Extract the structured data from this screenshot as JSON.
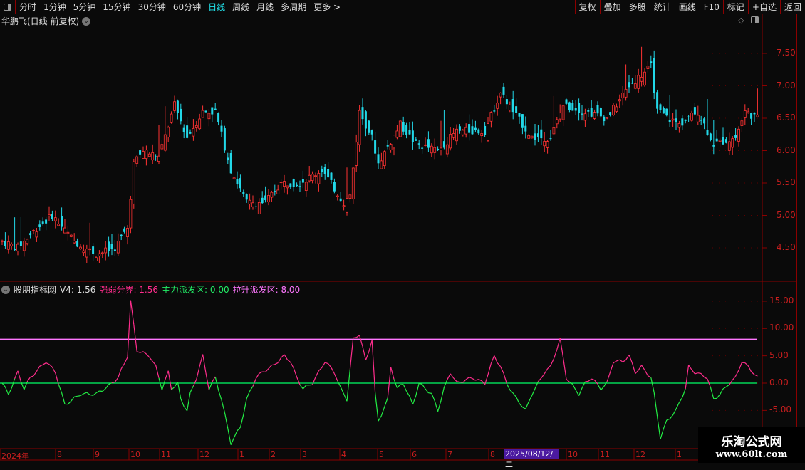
{
  "toolbar": {
    "periods": [
      "分时",
      "1分钟",
      "5分钟",
      "15分钟",
      "30分钟",
      "60分钟",
      "日线",
      "周线",
      "月线",
      "多周期",
      "更多 >"
    ],
    "active": "日线",
    "right_buttons": [
      "复权",
      "叠加",
      "多股",
      "统计",
      "画线",
      "F10",
      "标记",
      "+自选",
      "返回"
    ]
  },
  "main": {
    "title": "华鹏飞(日线 前复权)",
    "price_ticks": [
      "7.50",
      "7.00",
      "6.50",
      "6.00",
      "5.50",
      "5.00",
      "4.50"
    ],
    "price_path": [
      [
        0,
        4.6
      ],
      [
        5,
        4.5
      ],
      [
        11,
        4.8
      ],
      [
        16,
        5.0
      ],
      [
        23,
        4.6
      ],
      [
        30,
        4.4
      ],
      [
        36,
        4.5
      ],
      [
        40,
        4.8
      ],
      [
        42,
        5.8
      ],
      [
        45,
        6.0
      ],
      [
        50,
        5.9
      ],
      [
        55,
        6.7
      ],
      [
        59,
        6.2
      ],
      [
        64,
        6.6
      ],
      [
        68,
        6.6
      ],
      [
        73,
        5.7
      ],
      [
        78,
        5.2
      ],
      [
        84,
        5.2
      ],
      [
        89,
        5.5
      ],
      [
        95,
        5.5
      ],
      [
        102,
        5.7
      ],
      [
        109,
        5.2
      ],
      [
        111,
        5.3
      ],
      [
        114,
        6.6
      ],
      [
        118,
        6.2
      ],
      [
        120,
        5.8
      ],
      [
        127,
        6.4
      ],
      [
        132,
        6.1
      ],
      [
        139,
        6.0
      ],
      [
        145,
        6.3
      ],
      [
        154,
        6.3
      ],
      [
        159,
        6.9
      ],
      [
        163,
        6.6
      ],
      [
        169,
        6.2
      ],
      [
        175,
        6.2
      ],
      [
        179,
        6.7
      ],
      [
        186,
        6.6
      ],
      [
        193,
        6.5
      ],
      [
        200,
        7.0
      ],
      [
        207,
        7.3
      ],
      [
        209,
        6.6
      ],
      [
        216,
        6.4
      ],
      [
        222,
        6.6
      ],
      [
        227,
        6.1
      ],
      [
        234,
        6.2
      ],
      [
        237,
        6.6
      ],
      [
        241,
        6.5
      ]
    ],
    "up_color": "#ff3232",
    "down_color": "#22d8e8"
  },
  "indicator": {
    "name": "股朋指标网",
    "v4_label": "V4: 1.56",
    "strong_weak_label": "强弱分界: 1.56",
    "main_dist_label": "主力派发区: 0.00",
    "pull_dist_label": "拉升派发区: 8.00",
    "strong_weak": 1.56,
    "main_dist": 0.0,
    "pull_dist": 8.0,
    "ticks": [
      "15.00",
      "10.00",
      "5.00",
      "0.00",
      "-5.00"
    ],
    "v4_path": [
      [
        0,
        0
      ],
      [
        2,
        -2
      ],
      [
        5,
        2
      ],
      [
        7,
        -1
      ],
      [
        9,
        1
      ],
      [
        14,
        4
      ],
      [
        17,
        2
      ],
      [
        20,
        -4
      ],
      [
        25,
        -2
      ],
      [
        30,
        -2
      ],
      [
        34,
        -0.5
      ],
      [
        37,
        1
      ],
      [
        40,
        5
      ],
      [
        41,
        15
      ],
      [
        43,
        6
      ],
      [
        47,
        5
      ],
      [
        49,
        3
      ],
      [
        51,
        -1
      ],
      [
        53,
        2
      ],
      [
        54,
        -1
      ],
      [
        56,
        0
      ],
      [
        57,
        -3
      ],
      [
        59,
        -5
      ],
      [
        60,
        -2
      ],
      [
        62,
        1
      ],
      [
        64,
        5
      ],
      [
        66,
        -1
      ],
      [
        68,
        1
      ],
      [
        70,
        -3
      ],
      [
        73,
        -11
      ],
      [
        76,
        -8
      ],
      [
        78,
        -3
      ],
      [
        81,
        1
      ],
      [
        83,
        2
      ],
      [
        86,
        3
      ],
      [
        90,
        5
      ],
      [
        92,
        4
      ],
      [
        94,
        1
      ],
      [
        96,
        -1
      ],
      [
        99,
        0
      ],
      [
        101,
        2
      ],
      [
        103,
        4
      ],
      [
        106,
        2
      ],
      [
        108,
        -1
      ],
      [
        110,
        -3
      ],
      [
        112,
        8
      ],
      [
        114,
        9
      ],
      [
        116,
        4
      ],
      [
        118,
        8
      ],
      [
        119,
        -2
      ],
      [
        120,
        -7
      ],
      [
        123,
        -3
      ],
      [
        124,
        3
      ],
      [
        126,
        -1
      ],
      [
        128,
        0
      ],
      [
        131,
        -4
      ],
      [
        133,
        0
      ],
      [
        135,
        -1
      ],
      [
        137,
        -2
      ],
      [
        139,
        -5
      ],
      [
        141,
        -1
      ],
      [
        143,
        2
      ],
      [
        145,
        0
      ],
      [
        150,
        1
      ],
      [
        154,
        0
      ],
      [
        157,
        5
      ],
      [
        159,
        3
      ],
      [
        161,
        0
      ],
      [
        163,
        -2
      ],
      [
        167,
        -5
      ],
      [
        169,
        -2
      ],
      [
        173,
        2
      ],
      [
        175,
        3
      ],
      [
        178,
        8
      ],
      [
        180,
        1
      ],
      [
        184,
        -2
      ],
      [
        186,
        0
      ],
      [
        188,
        1
      ],
      [
        191,
        -1
      ],
      [
        193,
        0
      ],
      [
        195,
        4
      ],
      [
        198,
        4
      ],
      [
        200,
        5
      ],
      [
        202,
        2
      ],
      [
        204,
        3
      ],
      [
        207,
        1
      ],
      [
        208,
        -2
      ],
      [
        210,
        -10
      ],
      [
        212,
        -7
      ],
      [
        215,
        -5
      ],
      [
        218,
        -1
      ],
      [
        219,
        3
      ],
      [
        221,
        2
      ],
      [
        225,
        1
      ],
      [
        227,
        -3
      ],
      [
        229,
        -2
      ],
      [
        232,
        0
      ],
      [
        234,
        1
      ],
      [
        236,
        4
      ],
      [
        238,
        3
      ],
      [
        241,
        1
      ]
    ],
    "colors": {
      "pos": "#ff2d8c",
      "neg": "#22ee44",
      "pull": "#ff77ff",
      "main": "#00ff66",
      "strong": "#ff3399"
    }
  },
  "time_axis": {
    "labels": [
      "2024年",
      "8",
      "9",
      "10",
      "11",
      "12",
      "1",
      "2",
      "3",
      "4",
      "5",
      "6",
      "7",
      "8",
      "10",
      "11",
      "12",
      "1"
    ],
    "highlight": "2025/08/12/二"
  },
  "watermark": {
    "line1": "乐淘公式网",
    "line2": "www.60lt.com"
  }
}
